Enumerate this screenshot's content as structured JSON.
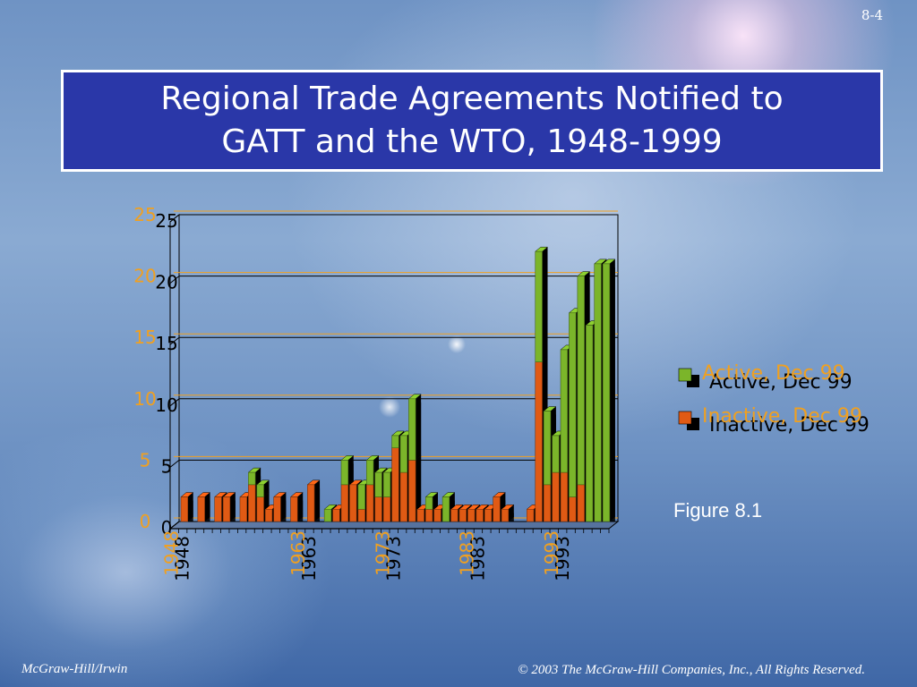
{
  "slide": {
    "page_number": "8-4",
    "title_line1": "Regional Trade Agreements Notified to",
    "title_line2": "GATT and the WTO, 1948-1999",
    "figure_label": "Figure 8.1",
    "footer_left": "McGraw-Hill/Irwin",
    "footer_right": "© 2003 The McGraw-Hill Companies, Inc., All Rights Reserved."
  },
  "colors": {
    "active": "#7bb52a",
    "inactive": "#e05a14",
    "gridline": "#000000",
    "label_orange": "#f0a020",
    "title_box": "#2a37a8"
  },
  "chart_data": {
    "type": "bar",
    "stacked": true,
    "style": "3d",
    "x": [
      1948,
      1949,
      1950,
      1951,
      1952,
      1953,
      1954,
      1955,
      1956,
      1957,
      1958,
      1959,
      1960,
      1961,
      1962,
      1963,
      1964,
      1965,
      1966,
      1967,
      1968,
      1969,
      1970,
      1971,
      1972,
      1973,
      1974,
      1975,
      1976,
      1977,
      1978,
      1979,
      1980,
      1981,
      1982,
      1983,
      1984,
      1985,
      1986,
      1987,
      1988,
      1989,
      1990,
      1991,
      1992,
      1993,
      1994,
      1995,
      1996,
      1997,
      1998,
      1999
    ],
    "x_tick_labels": [
      "1948",
      "1963",
      "1973",
      "1983",
      "1993"
    ],
    "x_tick_years": [
      1948,
      1963,
      1973,
      1983,
      1993
    ],
    "series": [
      {
        "name": "Inactive, Dec 99",
        "values": [
          2,
          0,
          2,
          0,
          2,
          2,
          0,
          2,
          3,
          2,
          1,
          2,
          0,
          2,
          0,
          3,
          0,
          0,
          1,
          3,
          3,
          1,
          3,
          2,
          2,
          6,
          4,
          5,
          1,
          1,
          1,
          0,
          1,
          1,
          1,
          1,
          1,
          2,
          1,
          0,
          0,
          1,
          13,
          3,
          4,
          4,
          2,
          3,
          0,
          0,
          0,
          0
        ]
      },
      {
        "name": "Active, Dec 99",
        "values": [
          0,
          0,
          0,
          0,
          0,
          0,
          0,
          0,
          1,
          1,
          0,
          0,
          0,
          0,
          0,
          0,
          0,
          1,
          0,
          2,
          0,
          2,
          2,
          2,
          2,
          1,
          3,
          5,
          0,
          1,
          0,
          2,
          0,
          0,
          0,
          0,
          0,
          0,
          0,
          0,
          0,
          0,
          9,
          6,
          3,
          10,
          15,
          17,
          16,
          21,
          21,
          0
        ]
      }
    ],
    "legend": [
      "Active, Dec 99",
      "Inactive, Dec 99"
    ],
    "legend_placement": "right",
    "y_ticks": [
      "0",
      "5",
      "10",
      "15",
      "20",
      "25"
    ],
    "ylim": [
      0,
      25
    ],
    "grid": true
  }
}
